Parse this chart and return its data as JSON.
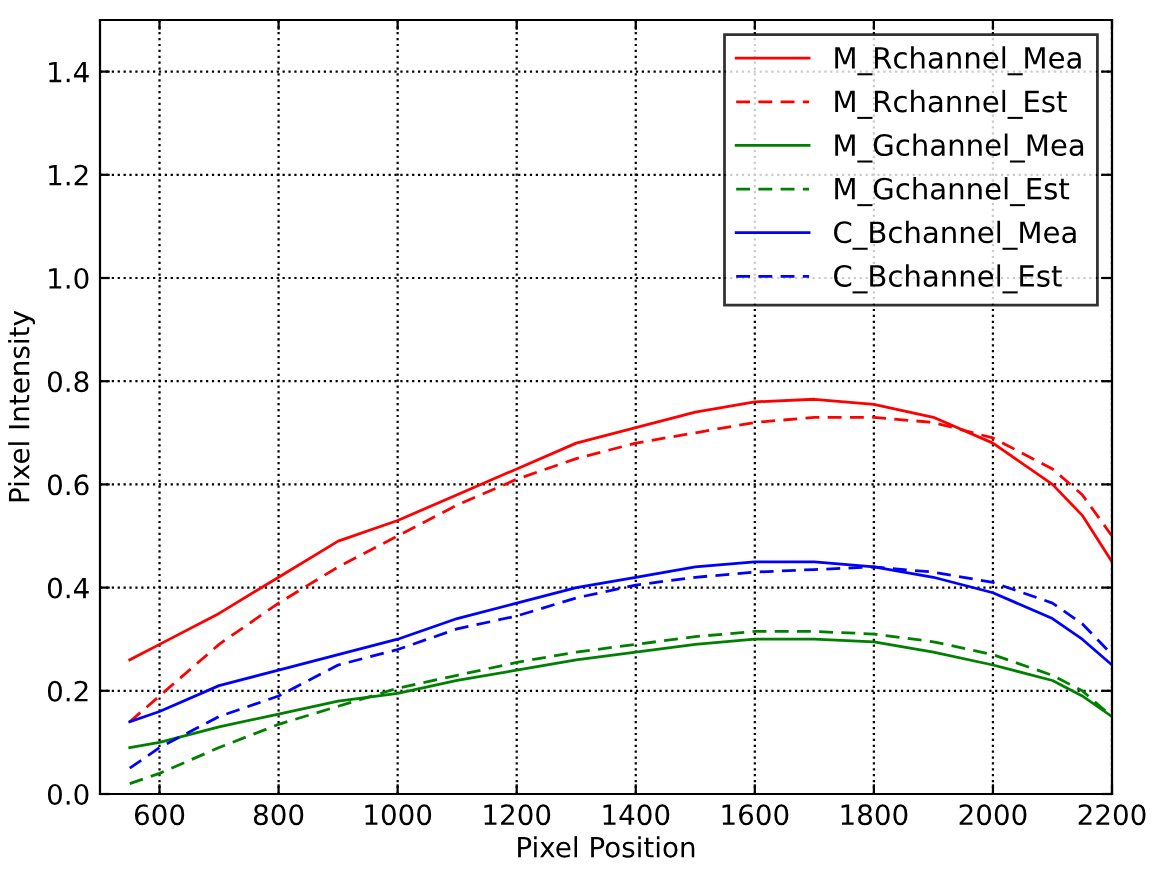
{
  "chart_data": {
    "type": "line",
    "xlabel": "Pixel Position",
    "ylabel": "Pixel Intensity",
    "x": [
      550,
      600,
      700,
      800,
      900,
      1000,
      1100,
      1200,
      1300,
      1400,
      1500,
      1600,
      1700,
      1800,
      1900,
      2000,
      2100,
      2150,
      2200
    ],
    "xlim": [
      500,
      2200
    ],
    "xticks": [
      600,
      800,
      1000,
      1200,
      1400,
      1600,
      1800,
      2000,
      2200
    ],
    "ylim": [
      0,
      1.5
    ],
    "yticks": [
      {
        "value": 0,
        "label": "0.0"
      },
      {
        "value": 0.2,
        "label": "0.2"
      },
      {
        "value": 0.4,
        "label": "0.4"
      },
      {
        "value": 0.6,
        "label": "0.6"
      },
      {
        "value": 0.8,
        "label": "0.8"
      },
      {
        "value": 1.0,
        "label": "1.0"
      },
      {
        "value": 1.2,
        "label": "1.2"
      },
      {
        "value": 1.4,
        "label": "1.4"
      }
    ],
    "grid": true,
    "legend": "top right",
    "marker": "none",
    "series": [
      {
        "name": "M_Rchannel_Mea",
        "color": "#ff0000",
        "line_style": "solid",
        "values": [
          0.26,
          0.29,
          0.35,
          0.42,
          0.49,
          0.53,
          0.58,
          0.63,
          0.68,
          0.71,
          0.74,
          0.76,
          0.765,
          0.755,
          0.73,
          0.68,
          0.6,
          0.54,
          0.45
        ]
      },
      {
        "name": "M_Rchannel_Est",
        "color": "#ff0000",
        "line_style": "dashed",
        "values": [
          0.14,
          0.19,
          0.29,
          0.37,
          0.44,
          0.5,
          0.56,
          0.61,
          0.65,
          0.68,
          0.7,
          0.72,
          0.73,
          0.73,
          0.72,
          0.69,
          0.63,
          0.58,
          0.5
        ]
      },
      {
        "name": "M_Gchannel_Mea",
        "color": "#008000",
        "line_style": "solid",
        "values": [
          0.09,
          0.1,
          0.13,
          0.155,
          0.18,
          0.195,
          0.22,
          0.24,
          0.26,
          0.275,
          0.29,
          0.3,
          0.3,
          0.295,
          0.275,
          0.25,
          0.22,
          0.19,
          0.15
        ]
      },
      {
        "name": "M_Gchannel_Est",
        "color": "#008000",
        "line_style": "dashed",
        "values": [
          0.02,
          0.04,
          0.09,
          0.135,
          0.17,
          0.205,
          0.23,
          0.255,
          0.275,
          0.29,
          0.305,
          0.315,
          0.315,
          0.31,
          0.295,
          0.27,
          0.23,
          0.2,
          0.15
        ]
      },
      {
        "name": "C_Bchannel_Mea",
        "color": "#0000ff",
        "line_style": "solid",
        "values": [
          0.14,
          0.16,
          0.21,
          0.24,
          0.27,
          0.3,
          0.34,
          0.37,
          0.4,
          0.42,
          0.44,
          0.45,
          0.45,
          0.44,
          0.42,
          0.39,
          0.34,
          0.3,
          0.25
        ]
      },
      {
        "name": "C_Bchannel_Est",
        "color": "#0000ff",
        "line_style": "dashed",
        "values": [
          0.05,
          0.09,
          0.15,
          0.19,
          0.25,
          0.28,
          0.32,
          0.345,
          0.38,
          0.405,
          0.42,
          0.43,
          0.435,
          0.44,
          0.43,
          0.41,
          0.37,
          0.33,
          0.27
        ]
      }
    ]
  }
}
